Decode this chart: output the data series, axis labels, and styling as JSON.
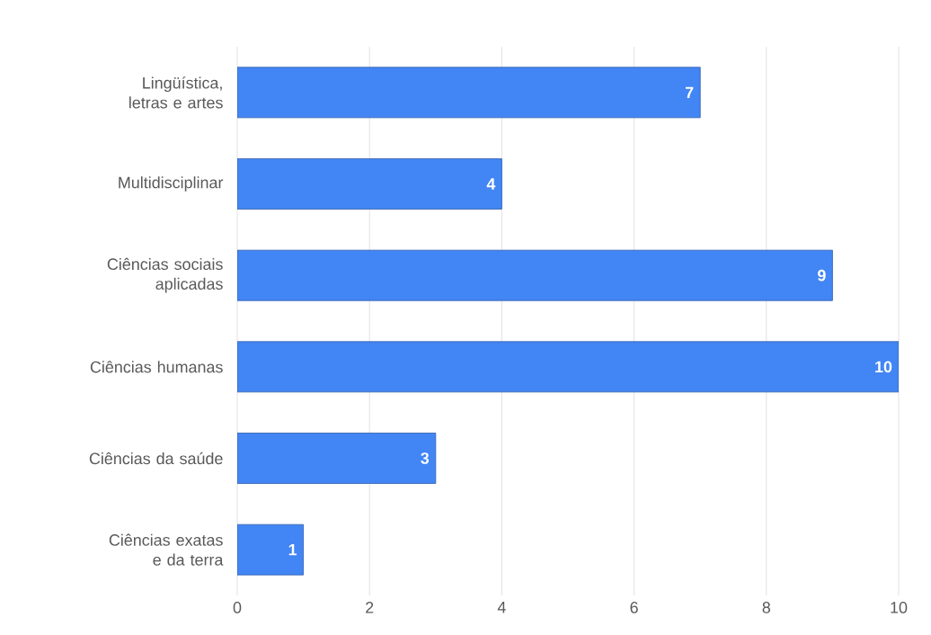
{
  "chart_data": {
    "type": "bar",
    "orientation": "horizontal",
    "categories": [
      "Lingüística, letras e artes",
      "Multidisciplinar",
      "Ciências sociais aplicadas",
      "Ciências humanas",
      "Ciências da saúde",
      "Ciências exatas e da terra"
    ],
    "values": [
      7,
      4,
      9,
      10,
      3,
      1
    ],
    "color": "#4285f4",
    "data_labels": true,
    "grid": "x",
    "xlim": [
      0,
      10
    ],
    "xticks": [
      0,
      2,
      4,
      6,
      8,
      10
    ]
  }
}
